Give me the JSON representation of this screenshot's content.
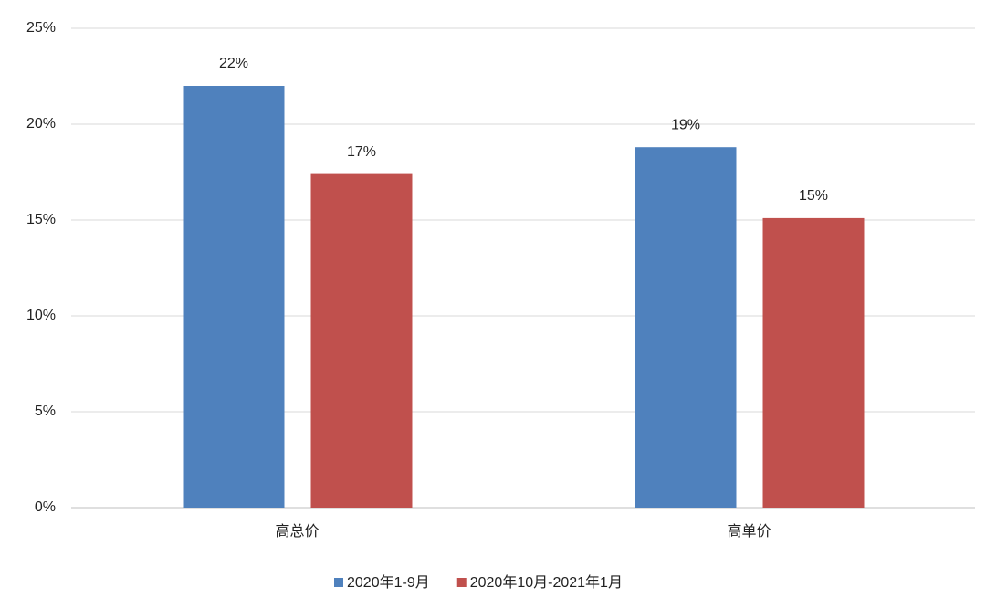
{
  "chart_data": {
    "type": "bar",
    "categories": [
      "高总价",
      "高单价"
    ],
    "series": [
      {
        "name": "2020年1-9月",
        "color": "#4f81bd",
        "values": [
          22.0,
          18.8
        ],
        "value_labels": [
          "22%",
          "19%"
        ]
      },
      {
        "name": "2020年10月-2021年1月",
        "color": "#c0504d",
        "values": [
          17.4,
          15.1
        ],
        "value_labels": [
          "17%",
          "15%"
        ]
      }
    ],
    "ylim": [
      0,
      25
    ],
    "yticks": [
      {
        "value": 0,
        "label": "0%"
      },
      {
        "value": 5,
        "label": "5%"
      },
      {
        "value": 10,
        "label": "10%"
      },
      {
        "value": 15,
        "label": "15%"
      },
      {
        "value": 20,
        "label": "20%"
      },
      {
        "value": 25,
        "label": "25%"
      }
    ],
    "grid": true,
    "legend": "bottom"
  }
}
